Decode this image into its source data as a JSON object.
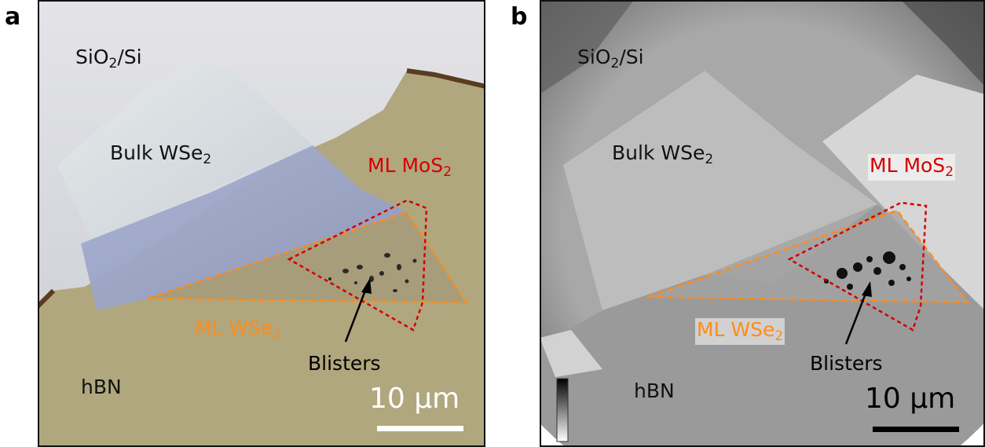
{
  "panels": {
    "a": {
      "letter": "a",
      "labels": {
        "substrate": {
          "main": "SiO",
          "sub": "2",
          "tail": "/Si"
        },
        "bulk": {
          "main": "Bulk WSe",
          "sub": "2"
        },
        "mos2": {
          "main": "ML MoS",
          "sub": "2"
        },
        "wse2": {
          "main": "ML WSe",
          "sub": "2"
        },
        "blisters": "Blisters",
        "hbn": "hBN"
      },
      "scale_bar": "10 µm"
    },
    "b": {
      "letter": "b",
      "labels": {
        "substrate": {
          "main": "SiO",
          "sub": "2",
          "tail": "/Si"
        },
        "bulk": {
          "main": "Bulk WSe",
          "sub": "2"
        },
        "mos2": {
          "main": "ML MoS",
          "sub": "2"
        },
        "wse2": {
          "main": "ML WSe",
          "sub": "2"
        },
        "blisters": "Blisters",
        "hbn": "hBN"
      },
      "scale_bar": "10 µm"
    }
  },
  "colors": {
    "mos2_outline": "#d40000",
    "wse2_outline": "#ff8c1a",
    "hbn_optical": "#b0a77e",
    "sio2_optical": "#d8d8dc",
    "bulk_optical": "#9aa4c4"
  }
}
